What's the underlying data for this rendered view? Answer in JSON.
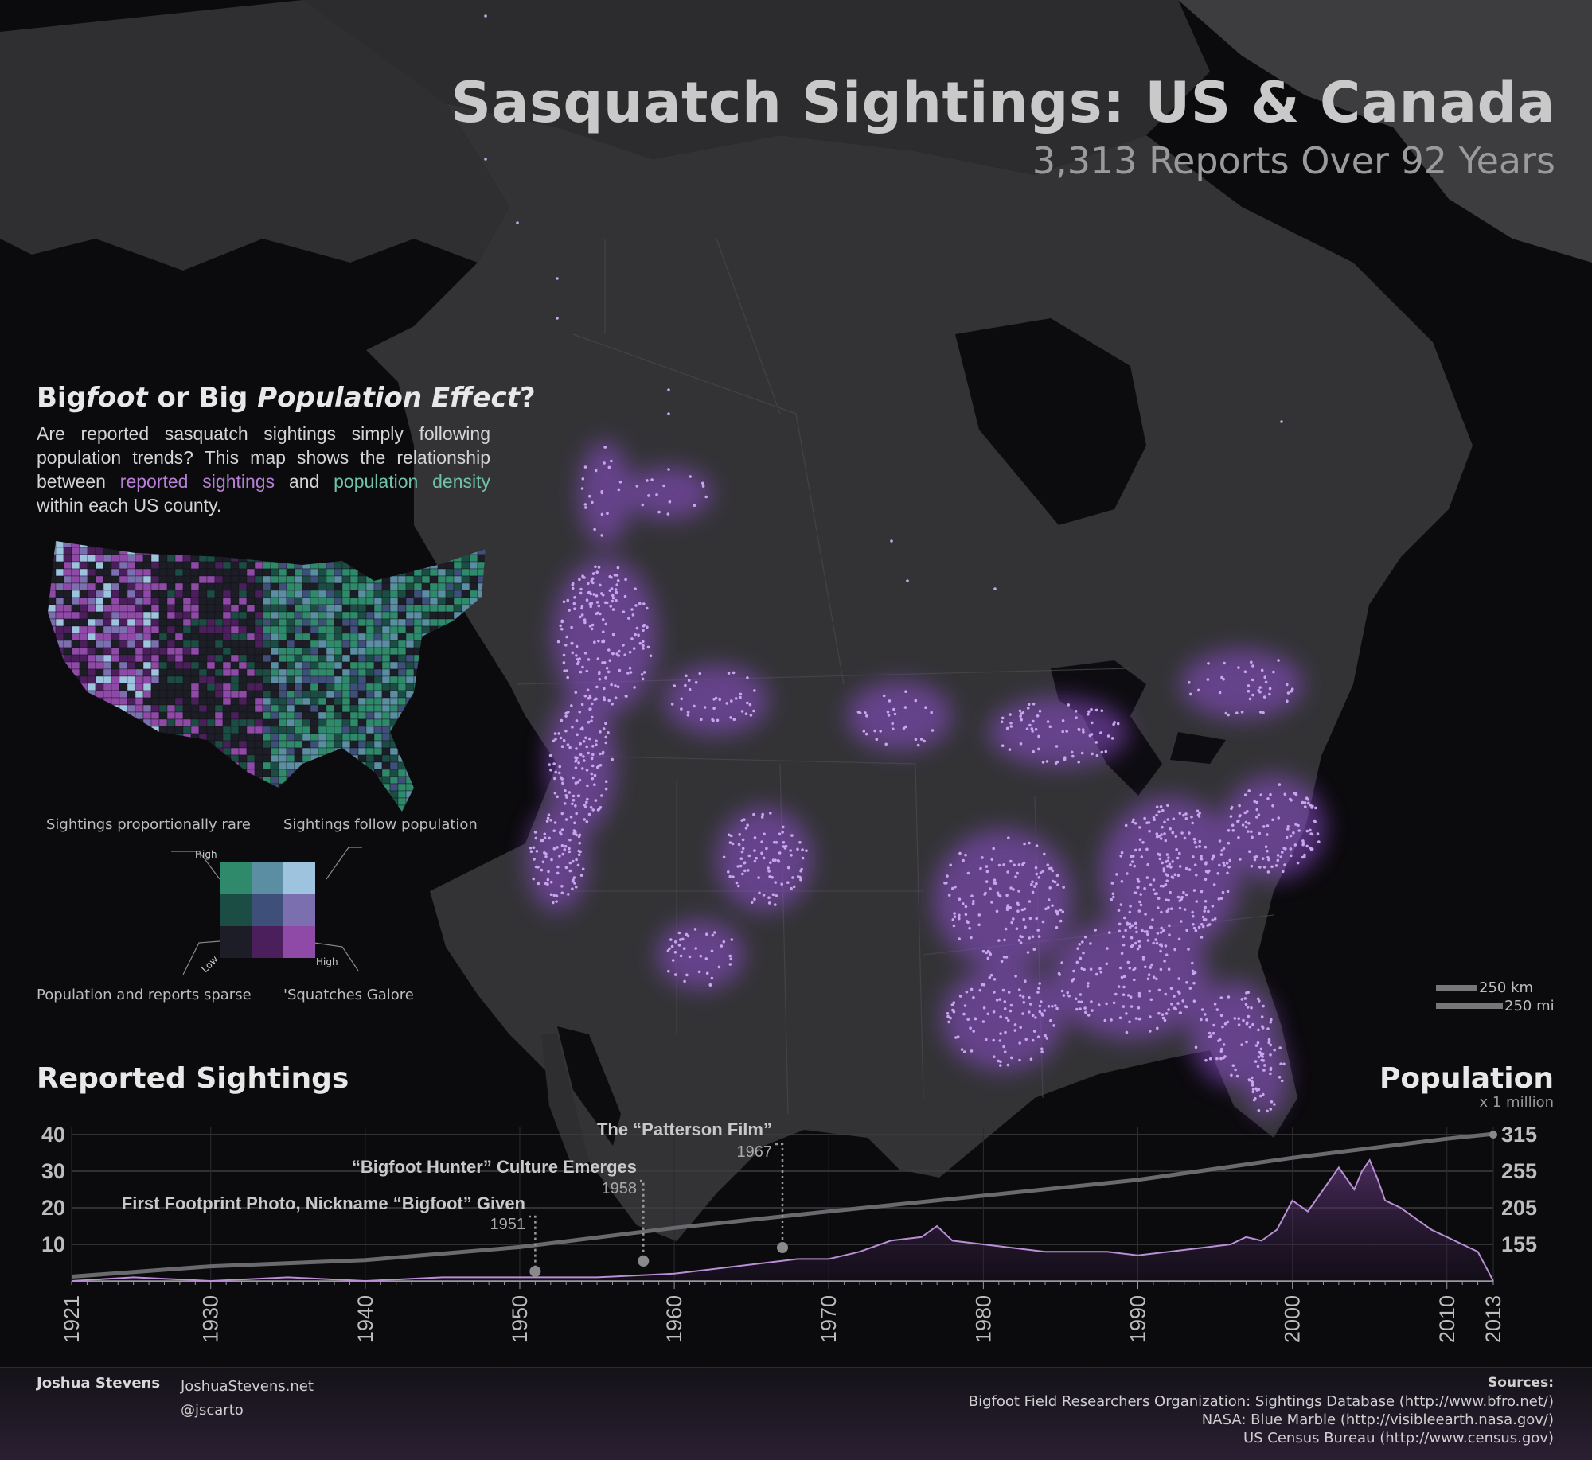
{
  "title": "Sasquatch Sightings: US & Canada",
  "subtitle": "3,313 Reports Over 92 Years",
  "sidebar": {
    "heading_part1": "Big",
    "heading_part2": "foot",
    "heading_part3": " or Big ",
    "heading_part4": "Population Effect",
    "heading_part5": "?",
    "body_part1": "Are reported sasquatch sightings simply following population trends? This map shows the relationship between ",
    "body_highlight1": "reported sightings",
    "body_part2": " and ",
    "body_highlight2": "population density",
    "body_part3": " within each US county."
  },
  "legend": {
    "top_left": "Sightings proportionally rare",
    "top_right": "Sightings follow population",
    "bottom_left": "Population and reports sparse",
    "bottom_right": "'Squatches Galore",
    "high_top": "High",
    "high_right": "High",
    "low": "Low",
    "grid_colors": [
      "#2f8a6c",
      "#5b8ea3",
      "#9ec3df",
      "#1c4d45",
      "#3e4f7a",
      "#7b6fb0",
      "#1d1d27",
      "#4a1f5c",
      "#8e4aa6"
    ]
  },
  "scale": {
    "km": "250 km",
    "mi": "250 mi"
  },
  "colors": {
    "point": "#c9a4f0",
    "glow": "#8f4fd0",
    "land": "#323235",
    "ocean": "#0b0a0d",
    "sightings_line": "#b98fd6"
  },
  "chart_data": {
    "type": "line",
    "title_left": "Reported Sightings",
    "title_right": "Population",
    "right_unit": "x 1 million",
    "x_range": [
      1921,
      2013
    ],
    "x_ticks": [
      "1921",
      "1930",
      "1940",
      "1950",
      "1960",
      "1970",
      "1980",
      "1990",
      "2000",
      "2010",
      "2013"
    ],
    "y_left_ticks": [
      "40",
      "30",
      "20",
      "10"
    ],
    "y_left_range": [
      0,
      40
    ],
    "y_right_ticks": [
      "315",
      "255",
      "205",
      "155"
    ],
    "series": [
      {
        "name": "Reported Sightings",
        "x": [
          1921,
          1925,
          1930,
          1935,
          1940,
          1945,
          1950,
          1955,
          1960,
          1962,
          1964,
          1966,
          1968,
          1970,
          1972,
          1974,
          1976,
          1977,
          1978,
          1980,
          1982,
          1984,
          1986,
          1988,
          1990,
          1992,
          1994,
          1996,
          1997,
          1998,
          1999,
          2000,
          2001,
          2002,
          2003,
          2004,
          2004.5,
          2005,
          2005.5,
          2006,
          2007,
          2008,
          2009,
          2010,
          2011,
          2012,
          2013
        ],
        "y": [
          0,
          1,
          0,
          1,
          0,
          1,
          1,
          1,
          2,
          3,
          4,
          5,
          6,
          6,
          8,
          11,
          12,
          15,
          11,
          10,
          9,
          8,
          8,
          8,
          7,
          8,
          9,
          10,
          12,
          11,
          14,
          22,
          19,
          25,
          31,
          25,
          30,
          33,
          28,
          22,
          20,
          17,
          14,
          12,
          10,
          8,
          0
        ]
      },
      {
        "name": "Population",
        "x": [
          1921,
          1930,
          1940,
          1950,
          1960,
          1970,
          1980,
          1990,
          2000,
          2010,
          2013
        ],
        "y": [
          108,
          123,
          132,
          151,
          179,
          203,
          226,
          249,
          281,
          309,
          316
        ]
      }
    ],
    "annotations": [
      {
        "label": "First Footprint Photo, Nickname “Bigfoot” Given",
        "year": "1951"
      },
      {
        "label": "“Bigfoot Hunter” Culture Emerges",
        "year": "1958"
      },
      {
        "label": "The “Patterson Film”",
        "year": "1967"
      }
    ]
  },
  "footer": {
    "author": "Joshua Stevens",
    "site": "JoshuaStevens.net",
    "handle": "@jscarto",
    "sources_label": "Sources:",
    "source1": "Bigfoot Field Researchers Organization: Sightings Database (http://www.bfro.net/)",
    "source2": "NASA: Blue Marble (http://visibleearth.nasa.gov/)",
    "source3": "US Census Bureau (http://www.census.gov)"
  }
}
